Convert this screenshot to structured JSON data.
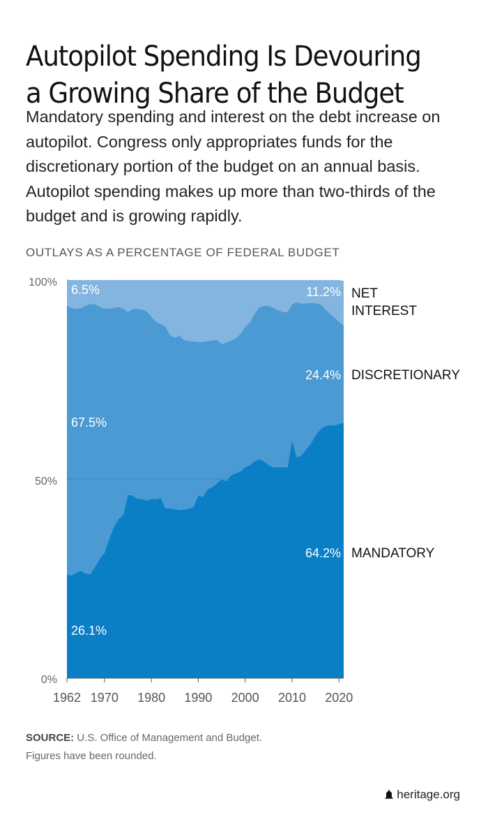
{
  "header": {
    "title": "Autopilot Spending Is Devouring a Growing Share of the Budget",
    "subtitle": "Mandatory spending and interest on the debt increase on autopilot. Congress only appropriates funds for the discretionary portion of the budget on an annual basis. Autopilot spending makes up more than two-thirds of the budget and is growing rapidly."
  },
  "chart_caption": "OUTLAYS AS A PERCENTAGE OF FEDERAL BUDGET",
  "chart_data": {
    "type": "area",
    "stacked": true,
    "x": [
      1962,
      1963,
      1964,
      1965,
      1966,
      1967,
      1968,
      1969,
      1970,
      1971,
      1972,
      1973,
      1974,
      1975,
      1976,
      1977,
      1978,
      1979,
      1980,
      1981,
      1982,
      1983,
      1984,
      1985,
      1986,
      1987,
      1988,
      1989,
      1990,
      1991,
      1992,
      1993,
      1994,
      1995,
      1996,
      1997,
      1998,
      1999,
      2000,
      2001,
      2002,
      2003,
      2004,
      2005,
      2006,
      2007,
      2008,
      2009,
      2010,
      2011,
      2012,
      2013,
      2014,
      2015,
      2016,
      2017,
      2018,
      2019,
      2020,
      2021
    ],
    "series": [
      {
        "name": "MANDATORY",
        "color": "#0a7fc6",
        "values": [
          26.1,
          25.8,
          26.5,
          27,
          26.3,
          26.1,
          28,
          30,
          31.5,
          35,
          38,
          40,
          41,
          46,
          46,
          45,
          45,
          44.6,
          45,
          45,
          45.3,
          42.7,
          42.7,
          42.4,
          42.3,
          42.4,
          42.6,
          43,
          46,
          45.5,
          47.5,
          48,
          49,
          50,
          49.5,
          51,
          51.5,
          52,
          53,
          53.5,
          54.5,
          55,
          54.5,
          53.5,
          53,
          53,
          53,
          53,
          60,
          55.5,
          56,
          57.5,
          59,
          61,
          62.5,
          63.3,
          63.5,
          63.5,
          63.9,
          64.2
        ]
      },
      {
        "name": "DISCRETIONARY",
        "color": "#4b9ad3",
        "values": [
          67.5,
          67.2,
          66.3,
          66,
          67.2,
          67.9,
          66,
          63.3,
          61.3,
          57.8,
          55,
          53.3,
          51.9,
          46,
          46.7,
          47.8,
          47.6,
          47.6,
          45.8,
          44.5,
          43.7,
          45.7,
          43.5,
          43.2,
          43.7,
          42.6,
          42.1,
          41.6,
          38.5,
          39,
          37.2,
          36.9,
          36,
          33.9,
          34.9,
          33.8,
          33.9,
          34.5,
          35.3,
          35.9,
          37,
          38.2,
          39,
          40,
          40,
          39.5,
          39,
          39,
          34,
          39,
          38.1,
          36.7,
          35.3,
          33.2,
          31.5,
          29.4,
          28.2,
          27.2,
          25.6,
          24.4
        ]
      },
      {
        "name": "NET INTEREST",
        "color": "#84b5e0",
        "values": [
          6.5,
          7,
          7.2,
          7,
          6.5,
          6,
          6,
          6.7,
          7.2,
          7.2,
          7,
          6.7,
          7.1,
          8,
          7.3,
          7.2,
          7.4,
          7.8,
          9.2,
          10.5,
          11,
          11.6,
          13.8,
          14.4,
          14,
          15,
          15.3,
          15.4,
          15.5,
          15.5,
          15.3,
          15.1,
          15,
          16.1,
          15.6,
          15.2,
          14.6,
          13.5,
          11.7,
          10.6,
          8.5,
          6.8,
          6.5,
          6.5,
          7,
          7.5,
          8,
          8,
          6,
          5.5,
          5.9,
          5.8,
          5.7,
          5.8,
          6,
          7.3,
          8.3,
          9.3,
          10.5,
          11.2
        ]
      }
    ],
    "yticks": [
      "0%",
      "50%",
      "100%"
    ],
    "xticks": [
      1962,
      1970,
      1980,
      1990,
      2000,
      2010,
      2020
    ],
    "ylim": [
      0,
      100
    ],
    "start_labels": {
      "mandatory": "26.1%",
      "discretionary": "67.5%",
      "net_interest": "6.5%"
    },
    "end_labels": {
      "mandatory": "64.2%",
      "discretionary": "24.4%",
      "net_interest": "11.2%"
    },
    "legend": {
      "net_interest_line1": "NET",
      "net_interest_line2": "INTEREST",
      "discretionary": "DISCRETIONARY",
      "mandatory": "MANDATORY"
    }
  },
  "footer": {
    "source_label": "SOURCE:",
    "source_text": "U.S. Office of Management and Budget.",
    "note": "Figures have been rounded.",
    "brand": "heritage.org",
    "brand_icon": "bell-icon"
  }
}
